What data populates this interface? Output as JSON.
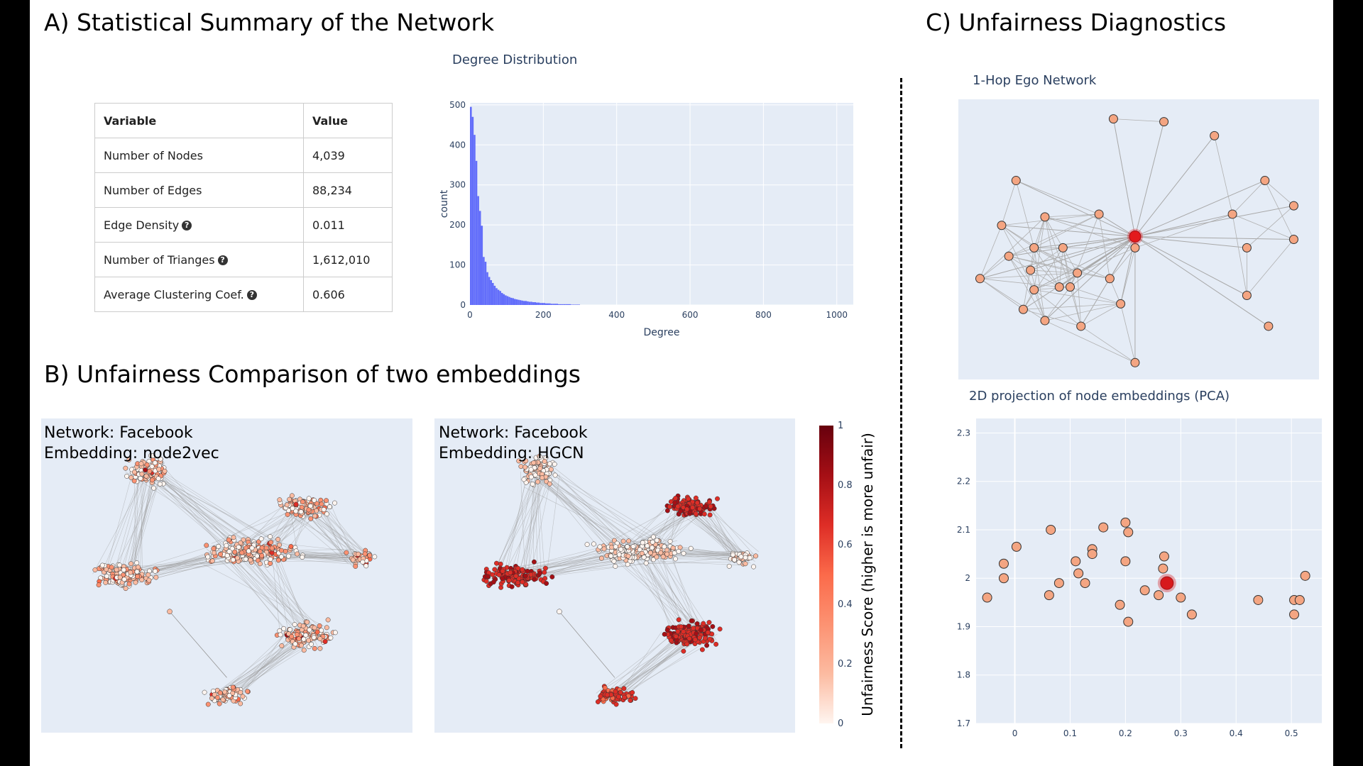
{
  "sections": {
    "a_title": "A) Statistical Summary of the Network",
    "b_title": "B) Unfairness Comparison of two embeddings",
    "c_title": "C) Unfairness Diagnostics"
  },
  "stats_table": {
    "headers": [
      "Variable",
      "Value"
    ],
    "rows": [
      {
        "label": "Number of Nodes",
        "value": "4,039",
        "help": false
      },
      {
        "label": "Number of Edges",
        "value": "88,234",
        "help": false
      },
      {
        "label": "Edge Density",
        "value": "0.011",
        "help": true
      },
      {
        "label": "Number of Trianges",
        "value": "1,612,010",
        "help": true
      },
      {
        "label": "Average Clustering Coef.",
        "value": "0.606",
        "help": true
      }
    ],
    "help_glyph": "?"
  },
  "chart_data": [
    {
      "type": "bar",
      "title": "Degree Distribution",
      "xlabel": "Degree",
      "ylabel": "count",
      "xlim": [
        0,
        1045
      ],
      "ylim": [
        0,
        505
      ],
      "x_ticks": [
        0,
        200,
        400,
        600,
        800,
        1000
      ],
      "y_ticks": [
        0,
        100,
        200,
        300,
        400,
        500
      ],
      "bin_width": 5,
      "values": [
        495,
        470,
        425,
        360,
        272,
        235,
        198,
        120,
        108,
        82,
        70,
        62,
        55,
        48,
        42,
        38,
        35,
        30,
        27,
        24,
        22,
        20,
        18,
        17,
        15,
        14,
        13,
        12,
        11,
        10,
        10,
        9,
        8,
        8,
        7,
        7,
        6,
        6,
        5,
        5,
        5,
        4,
        4,
        4,
        3,
        3,
        3,
        3,
        2,
        2,
        2,
        2,
        2,
        2,
        2,
        1,
        1,
        1,
        1,
        1
      ],
      "bar_color": "#636efa",
      "plot_bg": "#e5ecf6"
    },
    {
      "type": "scatter",
      "title": "2D projection of node embeddings (PCA)",
      "xlim": [
        -0.07,
        0.555
      ],
      "ylim": [
        1.7,
        2.33
      ],
      "x_ticks": [
        0,
        0.1,
        0.2,
        0.3,
        0.4,
        0.5
      ],
      "x_tick_labels": [
        "0",
        "0.1",
        "0.2",
        "0.3",
        "0.4",
        "0.5"
      ],
      "y_ticks": [
        1.7,
        1.8,
        1.9,
        2,
        2.1,
        2.2,
        2.3
      ],
      "y_tick_labels": [
        "1.7",
        "1.8",
        "1.9",
        "2",
        "2.1",
        "2.2",
        "2.3"
      ],
      "points": [
        [
          -0.05,
          1.96
        ],
        [
          -0.02,
          2.03
        ],
        [
          -0.02,
          2.0
        ],
        [
          0.003,
          2.065
        ],
        [
          0.065,
          2.1
        ],
        [
          0.062,
          1.965
        ],
        [
          0.08,
          1.99
        ],
        [
          0.11,
          2.035
        ],
        [
          0.115,
          2.01
        ],
        [
          0.127,
          1.99
        ],
        [
          0.14,
          2.06
        ],
        [
          0.14,
          2.05
        ],
        [
          0.16,
          2.105
        ],
        [
          0.19,
          1.945
        ],
        [
          0.2,
          2.115
        ],
        [
          0.205,
          2.095
        ],
        [
          0.2,
          2.035
        ],
        [
          0.205,
          1.91
        ],
        [
          0.235,
          1.975
        ],
        [
          0.26,
          1.965
        ],
        [
          0.268,
          2.02
        ],
        [
          0.27,
          2.045
        ],
        [
          0.3,
          1.96
        ],
        [
          0.32,
          1.925
        ],
        [
          0.44,
          1.955
        ],
        [
          0.505,
          1.955
        ],
        [
          0.505,
          1.925
        ],
        [
          0.515,
          1.955
        ],
        [
          0.525,
          2.005
        ]
      ],
      "highlight": [
        0.275,
        1.99
      ],
      "point_color": "#f4a582",
      "highlight_color": "#d7191c",
      "plot_bg": "#e5ecf6"
    }
  ],
  "embeddings": [
    {
      "network_line": "Network: Facebook",
      "embedding_line": "Embedding: node2vec"
    },
    {
      "network_line": "Network: Facebook",
      "embedding_line": "Embedding: HGCN"
    }
  ],
  "colorbar": {
    "title": "Unfairness Score (higher is more unfair)",
    "ticks": [
      "0",
      "0.2",
      "0.4",
      "0.6",
      "0.8",
      "1"
    ],
    "colors": [
      "#fff5f0",
      "#fcbba1",
      "#fc9272",
      "#fb6a4a",
      "#de2d26",
      "#a50f15",
      "#67000d"
    ]
  },
  "ego": {
    "title": "1-Hop Ego Network",
    "node_color": "#f4a582",
    "center_color": "#e31a1c"
  }
}
